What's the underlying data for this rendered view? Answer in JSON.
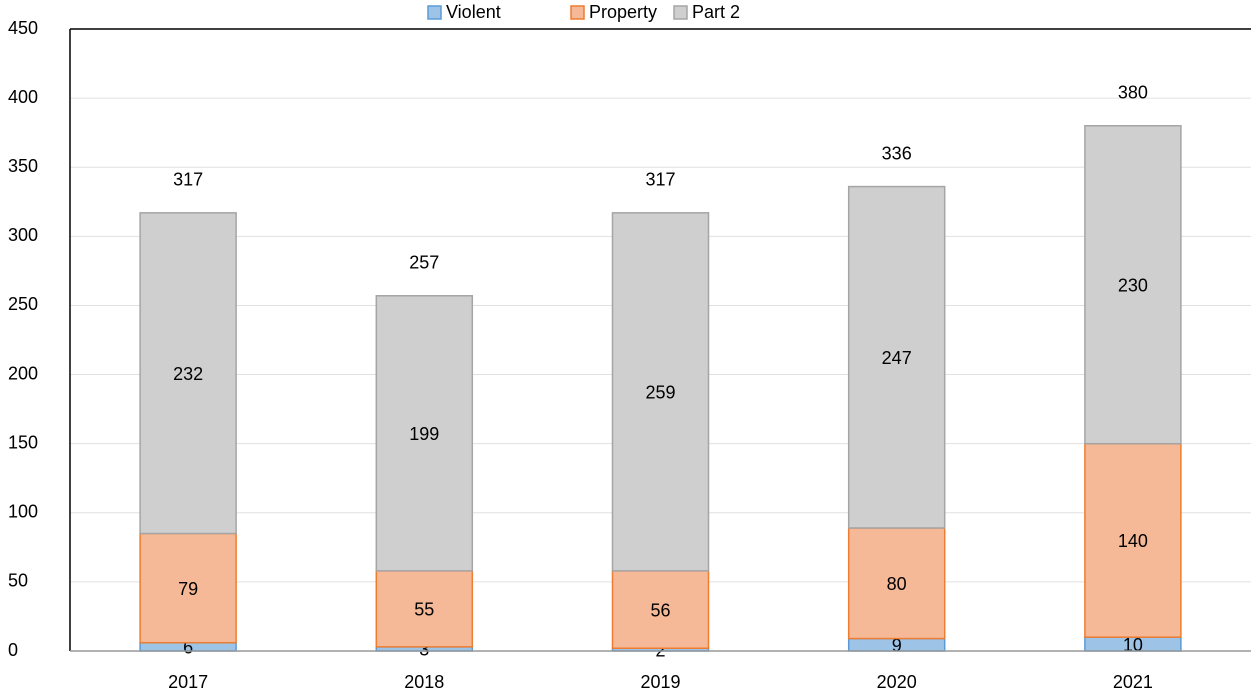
{
  "chart_data": {
    "type": "stacked_bar",
    "categories": [
      "2017",
      "2018",
      "2019",
      "2020",
      "2021"
    ],
    "series": [
      {
        "name": "Violent",
        "color": "#9dc3e6",
        "border": "#5b9bd5",
        "values": [
          6,
          3,
          2,
          9,
          10
        ]
      },
      {
        "name": "Property",
        "color": "#f6b998",
        "border": "#ed7d31",
        "values": [
          79,
          55,
          56,
          80,
          140
        ]
      },
      {
        "name": "Part 2",
        "color": "#cfcfcf",
        "border": "#a5a5a5",
        "values": [
          232,
          199,
          259,
          247,
          230
        ]
      }
    ],
    "totals": [
      317,
      257,
      317,
      336,
      380
    ],
    "ylim": [
      0,
      450
    ],
    "yticks": [
      0,
      50,
      100,
      150,
      200,
      250,
      300,
      350,
      400,
      450
    ],
    "grid": true,
    "legend": "top"
  }
}
